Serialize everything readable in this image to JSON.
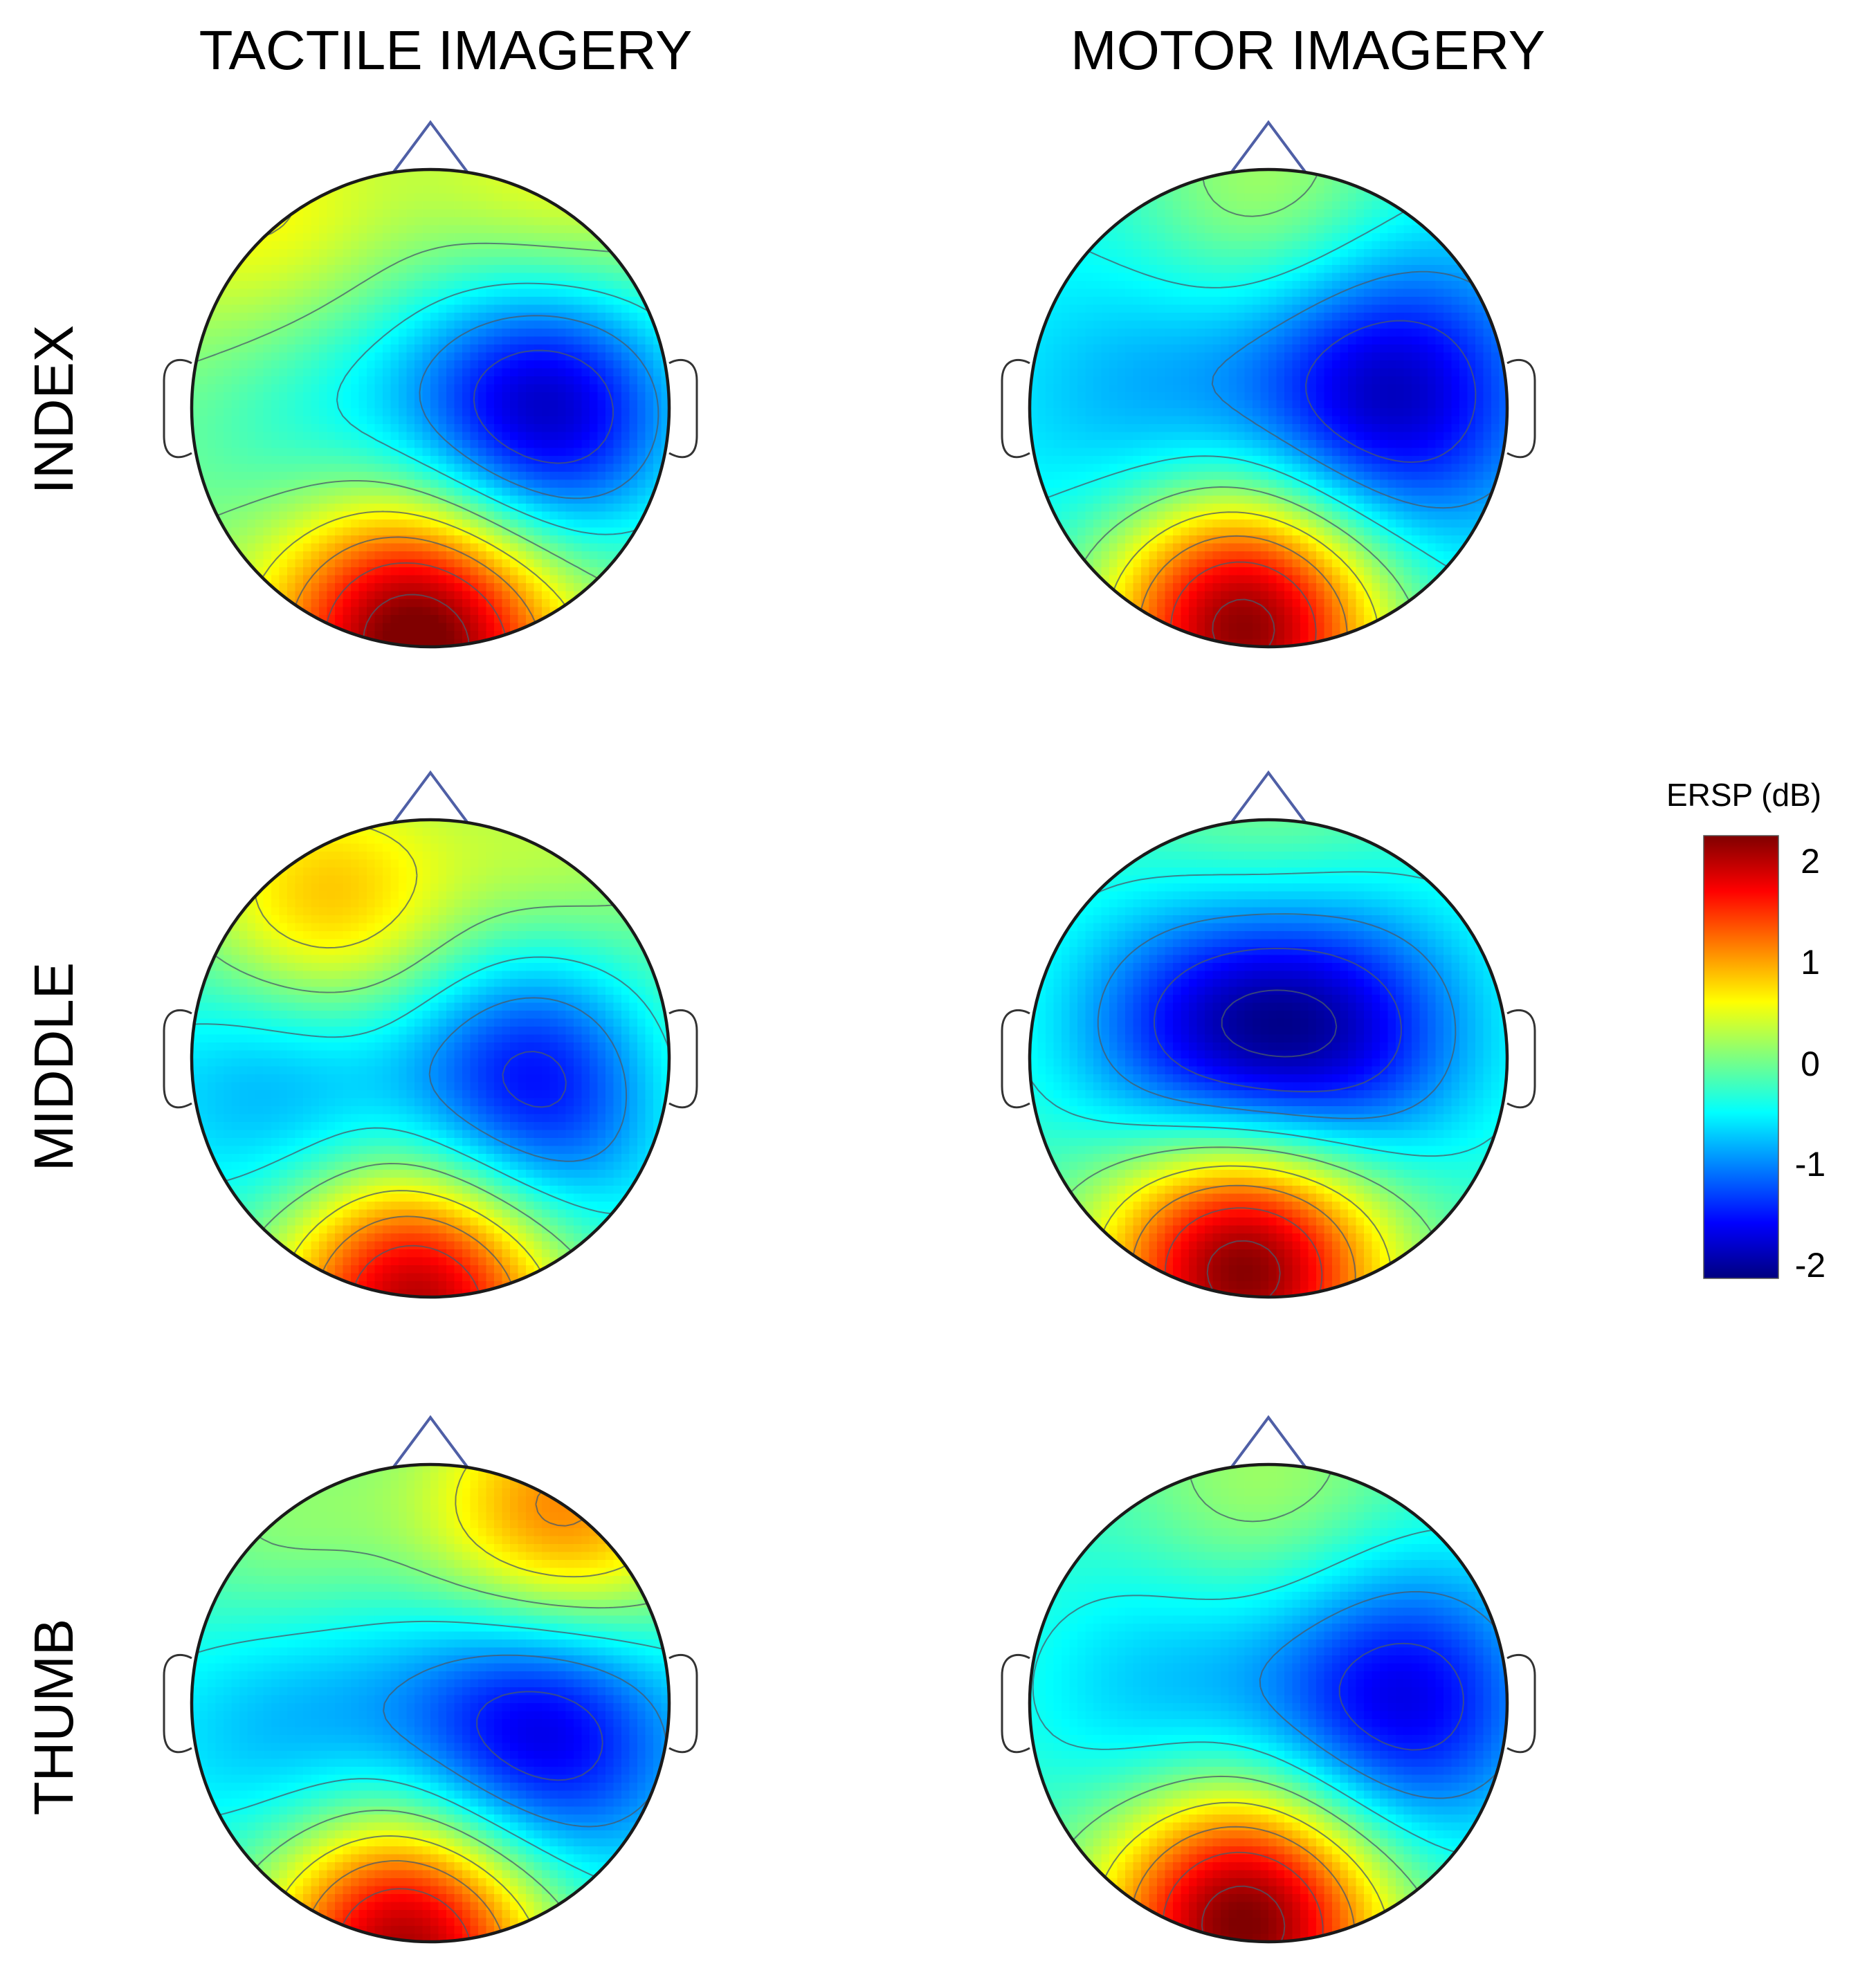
{
  "figure": {
    "column_titles": [
      "TACTILE IMAGERY",
      "MOTOR IMAGERY"
    ],
    "row_titles": [
      "INDEX",
      "MIDDLE",
      "THUMB"
    ]
  },
  "colorbar": {
    "title": "ERSP (dB)",
    "ticks": [
      "2",
      "1",
      "0",
      "-1",
      "-2"
    ],
    "colormap": "jet"
  },
  "colors": {
    "nose": "#4f5fa6",
    "head_outline": "#1a1a1a",
    "ear": "#333333",
    "contour": "#4a5a6a"
  },
  "chart_data": {
    "type": "heatmap",
    "subtype": "scalp topography",
    "title": "",
    "value_label": "ERSP (dB)",
    "value_range": [
      -2.2,
      2.2
    ],
    "colorbar_ticks": [
      2,
      1,
      0,
      -1,
      -2
    ],
    "columns": [
      "TACTILE IMAGERY",
      "MOTOR IMAGERY"
    ],
    "rows": [
      "INDEX",
      "MIDDLE",
      "THUMB"
    ],
    "maps": [
      {
        "row": "INDEX",
        "column": "TACTILE IMAGERY",
        "base": 0.0,
        "sources": [
          {
            "region": "right central",
            "u": 0.48,
            "v": 0.0,
            "amplitude_db": -2.0
          },
          {
            "region": "left central",
            "u": -0.45,
            "v": 0.0,
            "amplitude_db": -0.5
          },
          {
            "region": "occipital",
            "u": -0.05,
            "v": -0.95,
            "amplitude_db": 2.4
          },
          {
            "region": "left frontal",
            "u": -0.7,
            "v": 0.75,
            "amplitude_db": 0.6
          },
          {
            "region": "right frontal",
            "u": 0.55,
            "v": 0.85,
            "amplitude_db": 0.6
          }
        ]
      },
      {
        "row": "INDEX",
        "column": "MOTOR IMAGERY",
        "base": -0.5,
        "sources": [
          {
            "region": "right central",
            "u": 0.5,
            "v": 0.05,
            "amplitude_db": -1.5
          },
          {
            "region": "left central",
            "u": -0.45,
            "v": 0.0,
            "amplitude_db": -0.5
          },
          {
            "region": "occipital",
            "u": -0.1,
            "v": -0.9,
            "amplitude_db": 2.7
          },
          {
            "region": "frontal",
            "u": 0.0,
            "v": 0.9,
            "amplitude_db": 0.7
          }
        ]
      },
      {
        "row": "MIDDLE",
        "column": "TACTILE IMAGERY",
        "base": -0.35,
        "sources": [
          {
            "region": "right central",
            "u": 0.48,
            "v": -0.1,
            "amplitude_db": -1.6
          },
          {
            "region": "left central",
            "u": -0.6,
            "v": -0.05,
            "amplitude_db": -0.8
          },
          {
            "region": "left frontal spot",
            "u": -0.45,
            "v": 0.6,
            "amplitude_db": 1.3
          },
          {
            "region": "occipital",
            "u": -0.05,
            "v": -1.0,
            "amplitude_db": 2.4
          },
          {
            "region": "right frontal",
            "u": 0.55,
            "v": 0.85,
            "amplitude_db": 0.6
          },
          {
            "region": "right temporal",
            "u": 1.0,
            "v": 0.0,
            "amplitude_db": 0.5
          }
        ]
      },
      {
        "row": "MIDDLE",
        "column": "MOTOR IMAGERY",
        "base": -0.3,
        "sources": [
          {
            "region": "central band left",
            "u": -0.25,
            "v": 0.1,
            "amplitude_db": -1.3
          },
          {
            "region": "central band right",
            "u": 0.3,
            "v": 0.1,
            "amplitude_db": -1.3
          },
          {
            "region": "occipital",
            "u": -0.1,
            "v": -0.85,
            "amplitude_db": 2.6
          },
          {
            "region": "frontal",
            "u": 0.0,
            "v": 0.9,
            "amplitude_db": 0.4
          }
        ]
      },
      {
        "row": "THUMB",
        "column": "TACTILE IMAGERY",
        "base": -0.4,
        "sources": [
          {
            "region": "right central",
            "u": 0.45,
            "v": -0.1,
            "amplitude_db": -1.6
          },
          {
            "region": "left central",
            "u": -0.55,
            "v": -0.1,
            "amplitude_db": -0.6
          },
          {
            "region": "occipital",
            "u": -0.1,
            "v": -1.0,
            "amplitude_db": 2.5
          },
          {
            "region": "right frontal",
            "u": 0.55,
            "v": 0.75,
            "amplitude_db": 1.6
          },
          {
            "region": "left frontal",
            "u": -0.6,
            "v": 0.7,
            "amplitude_db": 0.5
          }
        ]
      },
      {
        "row": "THUMB",
        "column": "MOTOR IMAGERY",
        "base": -0.3,
        "sources": [
          {
            "region": "right central",
            "u": 0.55,
            "v": 0.0,
            "amplitude_db": -1.5
          },
          {
            "region": "left central",
            "u": -0.4,
            "v": 0.0,
            "amplitude_db": -0.6
          },
          {
            "region": "occipital",
            "u": -0.1,
            "v": -0.9,
            "amplitude_db": 2.6
          },
          {
            "region": "frontal",
            "u": 0.0,
            "v": 0.85,
            "amplitude_db": 0.5
          }
        ]
      }
    ]
  }
}
